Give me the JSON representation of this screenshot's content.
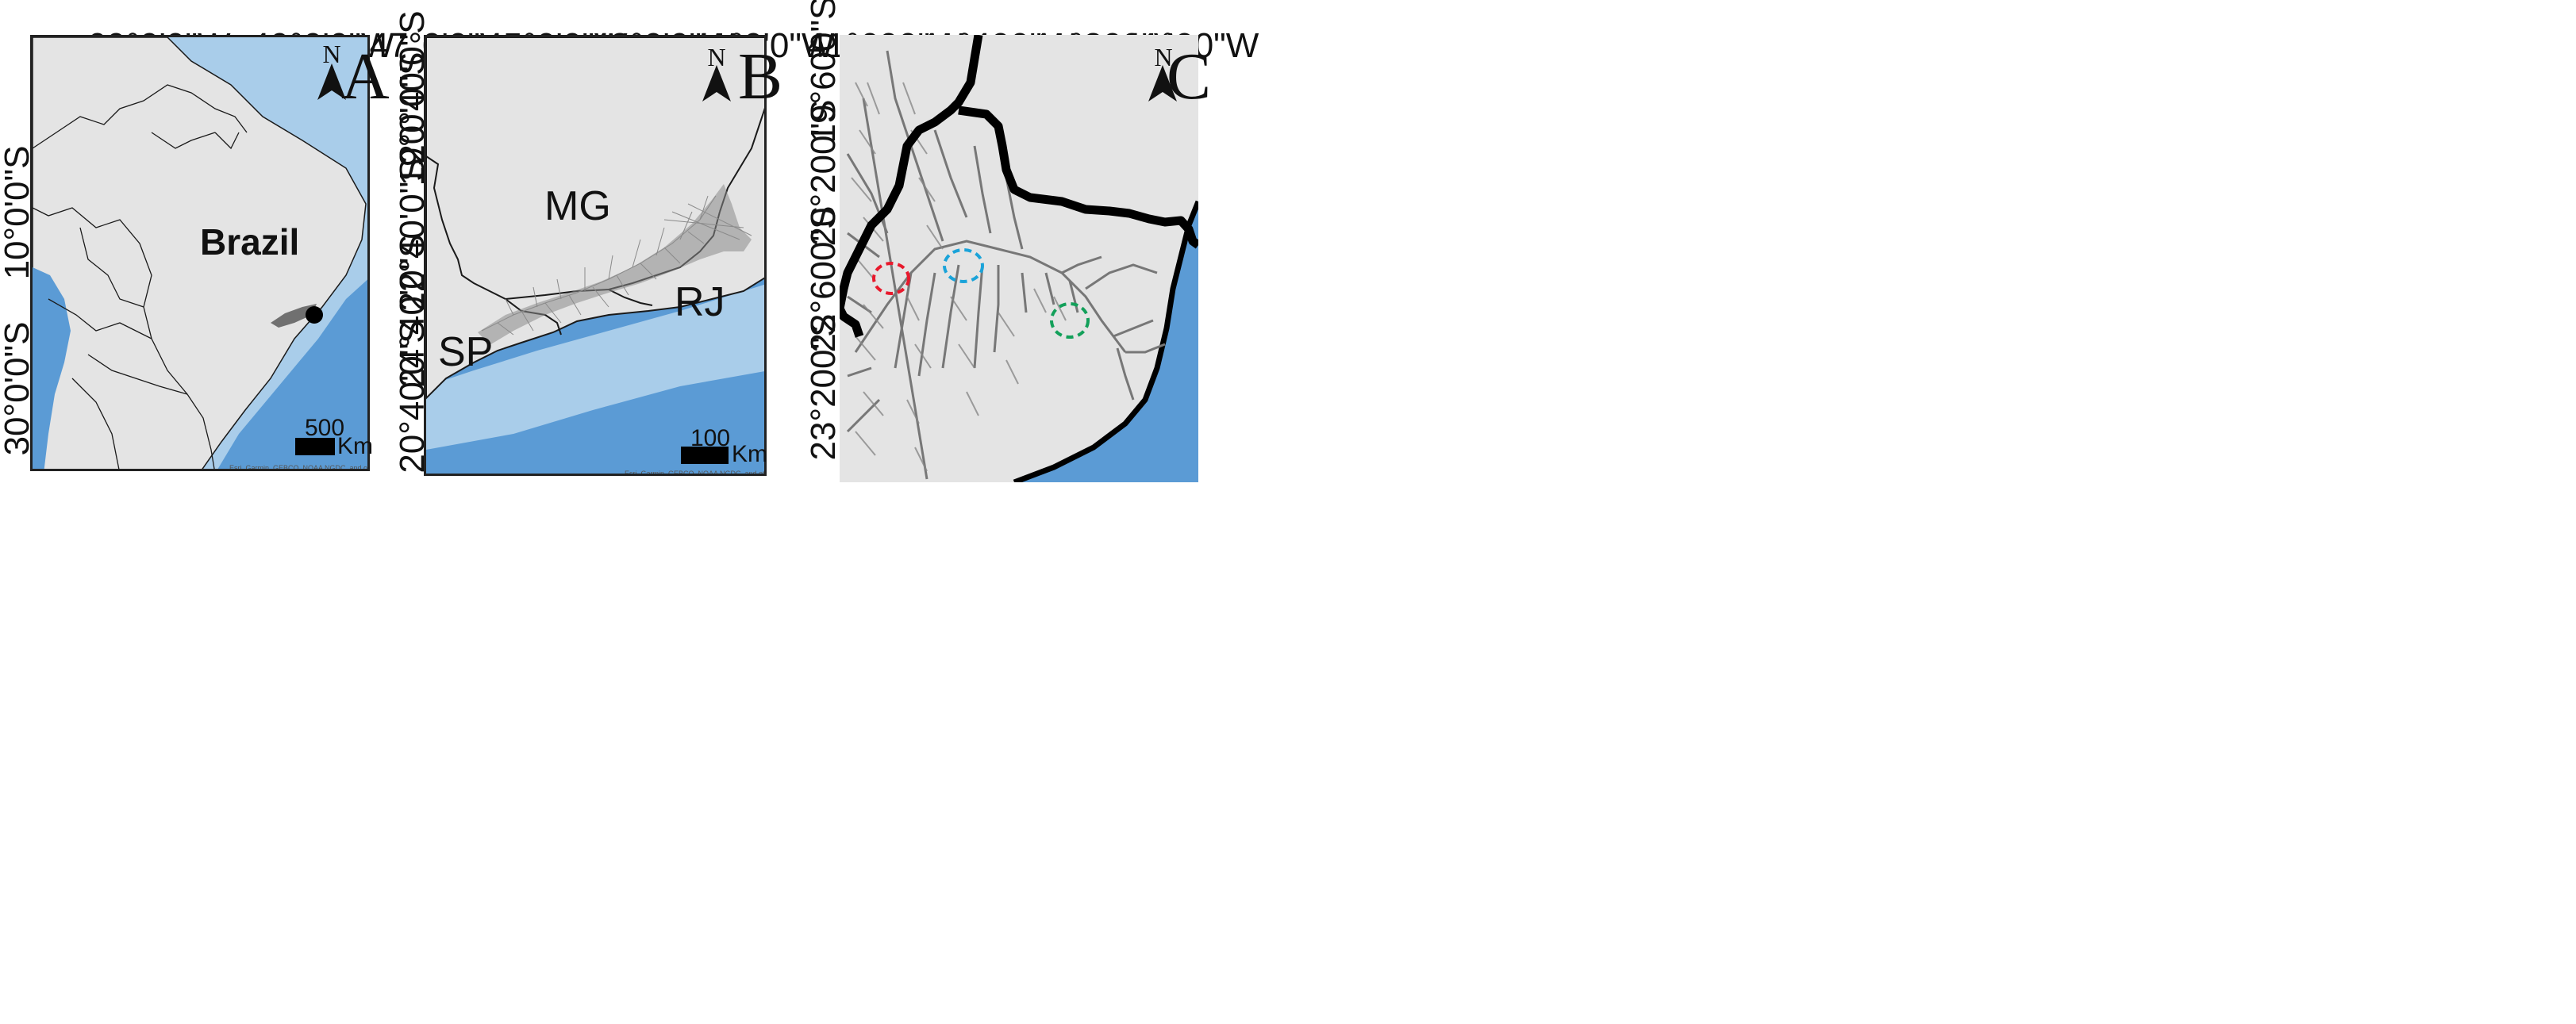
{
  "panel_a": {
    "letter": "A",
    "north_label": "N",
    "top_coords": [
      "60°0'0\"W",
      "40°0'0\"W"
    ],
    "left_coords": [
      "10°0'0\"S",
      "30°0'0\"S"
    ],
    "country_label": "Brazil",
    "scale": {
      "value": "500",
      "unit": "Km"
    },
    "attribution": "Esri, Garmin, GEBCO, NOAA NGDC, and other contributors"
  },
  "panel_b": {
    "letter": "B",
    "north_label": "N",
    "top_coords": [
      "47°0'0\"W",
      "45°0'0\"W",
      "43°0'0\"W",
      "41°0'0\"W"
    ],
    "left_coords": [
      "20°40'0\"S",
      "19°0'0\"S",
      "22°40'0\"S",
      "24°40'0\"S",
      "20°40'0\"S"
    ],
    "state_labels": {
      "mg": "MG",
      "rj": "RJ",
      "sp": "SP"
    },
    "scale": {
      "value": "100",
      "unit": "Km"
    },
    "attribution": "Esri, Garmin, GEBCO, NOAA NGDC, and other contributors"
  },
  "panel_c": {
    "letter": "C",
    "north_label": "N",
    "top_coords": [
      "41°600\"W",
      "41°400\"W",
      "41°200\"W",
      "41°00\"W"
    ],
    "left_coords": [
      "19°600\"S",
      "20°200\"S",
      "22°600\"S",
      "23°200\"S"
    ],
    "site_markers": [
      {
        "name": "red site",
        "color": "#e8192c"
      },
      {
        "name": "blue site",
        "color": "#1aa3d9"
      },
      {
        "name": "green site",
        "color": "#13a05a"
      }
    ]
  },
  "colors": {
    "land": "#e4e4e4",
    "ocean": "#5b9bd5",
    "shelf": "#a9cdea",
    "border": "#1a1a1a",
    "rivers": "#7a7a7a"
  }
}
